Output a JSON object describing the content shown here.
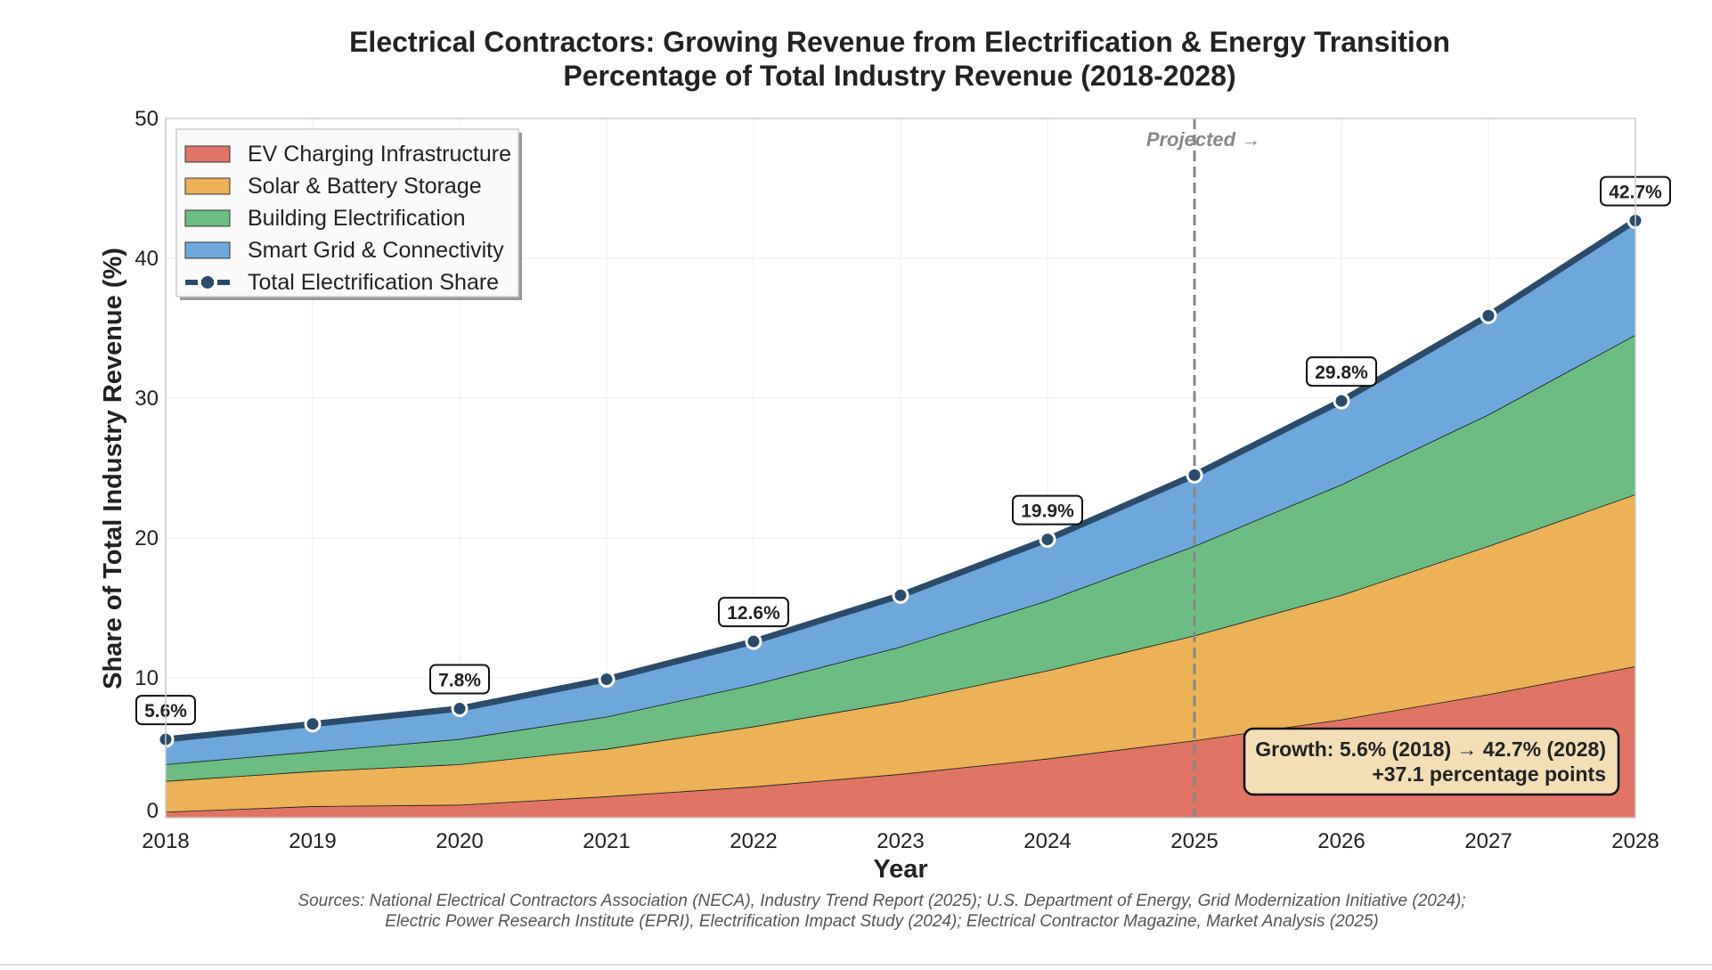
{
  "chart_data": {
    "type": "area",
    "stacked": true,
    "title": "Electrical Contractors: Growing Revenue from Electrification & Energy Transition",
    "subtitle": "Percentage of Total Industry Revenue (2018-2028)",
    "xlabel": "Year",
    "ylabel": "Share of Total Industry Revenue (%)",
    "xlim": [
      2018,
      2028
    ],
    "ylim": [
      0,
      50
    ],
    "x": [
      2018,
      2019,
      2020,
      2021,
      2022,
      2023,
      2024,
      2025,
      2026,
      2027,
      2028
    ],
    "x_ticks": [
      "2018",
      "2019",
      "2020",
      "2021",
      "2022",
      "2023",
      "2024",
      "2025",
      "2026",
      "2027",
      "2028"
    ],
    "y_ticks": [
      "0",
      "10",
      "20",
      "30",
      "40",
      "50"
    ],
    "grid": true,
    "legend_position": "top-left",
    "series": [
      {
        "name": "EV Charging Infrastructure",
        "color": "#e07565",
        "values": [
          0.4,
          0.8,
          0.9,
          1.5,
          2.2,
          3.1,
          4.2,
          5.5,
          7.0,
          8.8,
          10.8
        ]
      },
      {
        "name": "Solar & Battery Storage",
        "color": "#ebb257",
        "values": [
          2.2,
          2.5,
          2.9,
          3.4,
          4.3,
          5.2,
          6.3,
          7.5,
          8.9,
          10.6,
          12.3
        ]
      },
      {
        "name": "Building Electrification",
        "color": "#6dbd83",
        "values": [
          1.2,
          1.4,
          1.8,
          2.3,
          3.0,
          3.9,
          5.0,
          6.4,
          7.9,
          9.4,
          11.4
        ]
      },
      {
        "name": "Smart Grid & Connectivity",
        "color": "#6ea8da",
        "values": [
          1.8,
          2.0,
          2.2,
          2.7,
          3.1,
          3.7,
          4.4,
          5.1,
          6.0,
          7.1,
          8.2
        ]
      }
    ],
    "total_line": {
      "name": "Total Electrification Share",
      "color": "#2a4b6b",
      "values": [
        5.6,
        6.7,
        7.8,
        9.9,
        12.6,
        15.9,
        19.9,
        24.5,
        29.8,
        35.9,
        42.7
      ]
    },
    "data_labels": [
      {
        "x": 2018,
        "text": "5.6%"
      },
      {
        "x": 2020,
        "text": "7.8%"
      },
      {
        "x": 2022,
        "text": "12.6%"
      },
      {
        "x": 2024,
        "text": "19.9%"
      },
      {
        "x": 2026,
        "text": "29.8%"
      },
      {
        "x": 2028,
        "text": "42.7%"
      }
    ],
    "projection_marker": {
      "x": 2025,
      "label": "Projected →"
    },
    "annotation": {
      "line1": "Growth: 5.6% (2018) → 42.7% (2028)",
      "line2": "+37.1 percentage points"
    },
    "sources": {
      "line1": "Sources: National Electrical Contractors Association (NECA), Industry Trend Report (2025); U.S. Department of Energy, Grid Modernization Initiative (2024);",
      "line2": "Electric Power Research Institute (EPRI), Electrification Impact Study (2024); Electrical Contractor Magazine, Market Analysis (2025)"
    }
  }
}
